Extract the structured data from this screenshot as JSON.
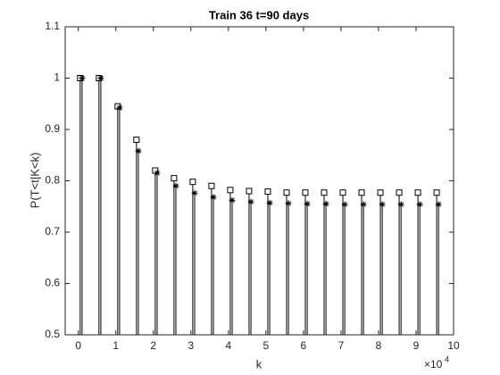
{
  "chart_data": {
    "type": "stem",
    "title": "Train 36  t=90 days",
    "x_label": "k",
    "y_label": "P(T<t|K<k)",
    "x_exponent": {
      "base": "×10",
      "power": "4"
    },
    "xlim": [
      -0.35,
      10
    ],
    "ylim": [
      0.5,
      1.1
    ],
    "xticks": [
      0,
      1,
      2,
      3,
      4,
      5,
      6,
      7,
      8,
      9,
      10
    ],
    "yticks": [
      0.5,
      0.6,
      0.7,
      0.8,
      0.9,
      1,
      1.1
    ],
    "box": true,
    "series": [
      {
        "marker": "square",
        "color": "#000000",
        "x": [
          0.05,
          0.55,
          1.05,
          1.55,
          2.05,
          2.55,
          3.05,
          3.55,
          4.05,
          4.55,
          5.05,
          5.55,
          6.05,
          6.55,
          7.05,
          7.55,
          8.05,
          8.55,
          9.05,
          9.55
        ],
        "values": [
          1.0,
          1.0,
          0.945,
          0.88,
          0.82,
          0.805,
          0.798,
          0.79,
          0.782,
          0.78,
          0.779,
          0.777,
          0.777,
          0.777,
          0.777,
          0.777,
          0.777,
          0.777,
          0.777,
          0.777
        ]
      },
      {
        "marker": "asterisk",
        "color": "#000000",
        "x": [
          0.1,
          0.6,
          1.1,
          1.6,
          2.1,
          2.6,
          3.1,
          3.6,
          4.1,
          4.6,
          5.1,
          5.6,
          6.1,
          6.6,
          7.1,
          7.6,
          8.1,
          8.6,
          9.1,
          9.6
        ],
        "values": [
          1.0,
          1.0,
          0.942,
          0.858,
          0.815,
          0.79,
          0.776,
          0.768,
          0.762,
          0.759,
          0.757,
          0.756,
          0.755,
          0.755,
          0.754,
          0.754,
          0.754,
          0.754,
          0.754,
          0.754
        ]
      }
    ]
  }
}
